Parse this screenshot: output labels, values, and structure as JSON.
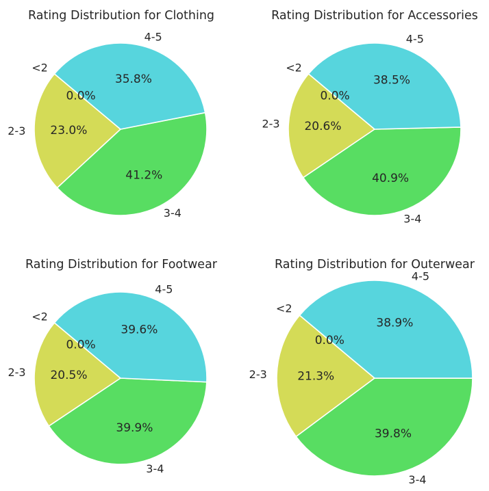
{
  "chart_data": [
    {
      "type": "pie",
      "title": "Rating Distribution for Clothing",
      "labels": [
        "<2",
        "2-3",
        "3-4",
        "4-5"
      ],
      "values": [
        0.0,
        23.0,
        41.2,
        35.8
      ],
      "value_labels": [
        "0.0%",
        "23.0%",
        "41.2%",
        "35.8%"
      ],
      "colors": [
        "#d9c257",
        "#d4db57",
        "#58dd62",
        "#57d5dd"
      ]
    },
    {
      "type": "pie",
      "title": "Rating Distribution for Accessories",
      "labels": [
        "<2",
        "2-3",
        "3-4",
        "4-5"
      ],
      "values": [
        0.0,
        20.6,
        40.9,
        38.5
      ],
      "value_labels": [
        "0.0%",
        "20.6%",
        "40.9%",
        "38.5%"
      ],
      "colors": [
        "#d9c257",
        "#d4db57",
        "#58dd62",
        "#57d5dd"
      ]
    },
    {
      "type": "pie",
      "title": "Rating Distribution for Footwear",
      "labels": [
        "<2",
        "2-3",
        "3-4",
        "4-5"
      ],
      "values": [
        0.0,
        20.5,
        39.9,
        39.6
      ],
      "value_labels": [
        "0.0%",
        "20.5%",
        "39.9%",
        "39.6%"
      ],
      "colors": [
        "#d9c257",
        "#d4db57",
        "#58dd62",
        "#57d5dd"
      ]
    },
    {
      "type": "pie",
      "title": "Rating Distribution for Outerwear",
      "labels": [
        "<2",
        "2-3",
        "3-4",
        "4-5"
      ],
      "values": [
        0.0,
        21.3,
        39.8,
        38.9
      ],
      "value_labels": [
        "0.0%",
        "21.3%",
        "39.8%",
        "38.9%"
      ],
      "colors": [
        "#d9c257",
        "#d4db57",
        "#58dd62",
        "#57d5dd"
      ]
    }
  ]
}
